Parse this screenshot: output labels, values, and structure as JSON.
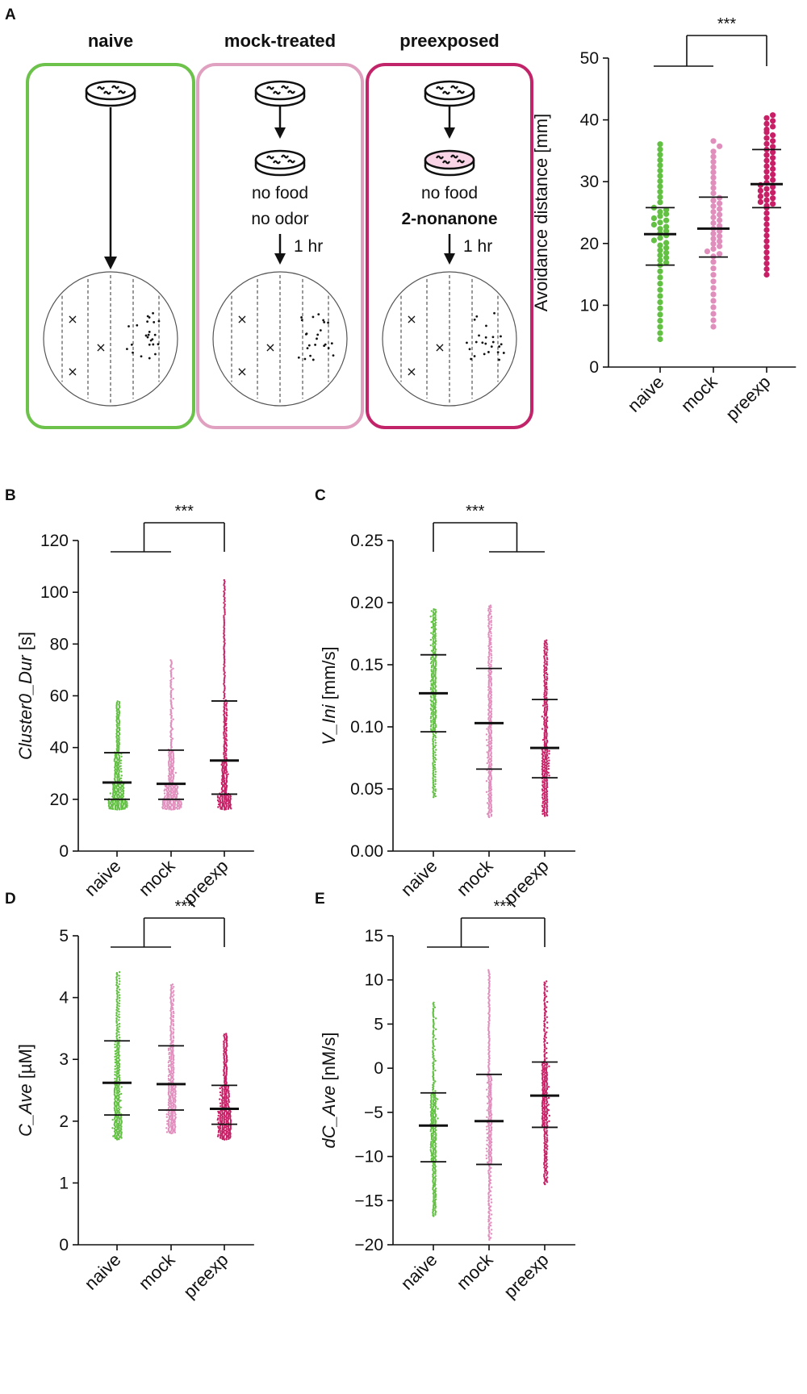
{
  "panel_labels": [
    "A",
    "B",
    "C",
    "D",
    "E"
  ],
  "schematic": {
    "columns": [
      {
        "key": "naive",
        "title": "naive",
        "border_color": "#6cc24a",
        "steps": [],
        "arrow_label": "",
        "dish_tint": "#ffffff"
      },
      {
        "key": "mock",
        "title": "mock-treated",
        "border_color": "#e0a0bf",
        "steps": [
          "no food",
          "no odor"
        ],
        "arrow_label": "1 hr",
        "dish_tint": "#ffffff"
      },
      {
        "key": "preexp",
        "title": "preexposed",
        "border_color": "#c2246a",
        "steps": [
          "no food",
          "2-nonanone"
        ],
        "arrow_label": "1 hr",
        "dish_tint": "#f9d4e6"
      }
    ]
  },
  "colors": {
    "naive": "#62c043",
    "mock": "#e08fbd",
    "preexp": "#c81f66",
    "axis": "#111111"
  },
  "chart_data": [
    {
      "id": "A",
      "type": "scatter",
      "title": "",
      "categories": [
        "naive",
        "mock",
        "preexp"
      ],
      "ylabel": "Avoidance distance [mm]",
      "ylabel_prefix": "",
      "ylabel_suffix": "",
      "ylim": [
        0,
        50
      ],
      "yticks": [
        0,
        10,
        20,
        30,
        40,
        50
      ],
      "ytick_labels": [
        "0",
        "10",
        "20",
        "30",
        "40",
        "50"
      ],
      "series": [
        {
          "name": "naive",
          "n": 50,
          "min": 4,
          "max": 36.5,
          "q1": 16.5,
          "median": 21.5,
          "q3": 25.8
        },
        {
          "name": "mock",
          "n": 45,
          "min": 6,
          "max": 37,
          "q1": 17.8,
          "median": 22.4,
          "q3": 27.5
        },
        {
          "name": "preexp",
          "n": 50,
          "min": 14.5,
          "max": 41,
          "q1": 25.8,
          "median": 29.6,
          "q3": 35.2
        }
      ],
      "significance": {
        "label": "***",
        "left": [
          "naive",
          "mock"
        ],
        "right": [
          "preexp"
        ]
      }
    },
    {
      "id": "B",
      "type": "scatter",
      "title": "",
      "categories": [
        "naive",
        "mock",
        "preexp"
      ],
      "ylabel": "",
      "ylabel_prefix": "Cluster0_Dur",
      "ylabel_suffix": " [s]",
      "ylim": [
        0,
        120
      ],
      "yticks": [
        0,
        20,
        40,
        60,
        80,
        100,
        120
      ],
      "ytick_labels": [
        "0",
        "20",
        "40",
        "60",
        "80",
        "100",
        "120"
      ],
      "series": [
        {
          "name": "naive",
          "n": 300,
          "min": 16,
          "max": 58,
          "q1": 20,
          "median": 26.5,
          "q3": 38
        },
        {
          "name": "mock",
          "n": 300,
          "min": 16,
          "max": 74,
          "q1": 20,
          "median": 26,
          "q3": 39
        },
        {
          "name": "preexp",
          "n": 300,
          "min": 16,
          "max": 105,
          "q1": 22,
          "median": 35,
          "q3": 58
        }
      ],
      "significance": {
        "label": "***",
        "left": [
          "naive",
          "mock"
        ],
        "right": [
          "preexp"
        ]
      }
    },
    {
      "id": "C",
      "type": "scatter",
      "title": "",
      "categories": [
        "naive",
        "mock",
        "preexp"
      ],
      "ylabel": "",
      "ylabel_prefix": "V_Ini",
      "ylabel_suffix": " [mm/s]",
      "ylim": [
        0,
        0.25
      ],
      "yticks": [
        0,
        0.05,
        0.1,
        0.15,
        0.2,
        0.25
      ],
      "ytick_labels": [
        "0.00",
        "0.05",
        "0.10",
        "0.15",
        "0.20",
        "0.25"
      ],
      "series": [
        {
          "name": "naive",
          "n": 300,
          "min": 0.043,
          "max": 0.195,
          "q1": 0.096,
          "median": 0.127,
          "q3": 0.158
        },
        {
          "name": "mock",
          "n": 300,
          "min": 0.027,
          "max": 0.198,
          "q1": 0.066,
          "median": 0.103,
          "q3": 0.147
        },
        {
          "name": "preexp",
          "n": 300,
          "min": 0.028,
          "max": 0.17,
          "q1": 0.059,
          "median": 0.083,
          "q3": 0.122
        }
      ],
      "significance": {
        "label": "***",
        "left": [
          "naive"
        ],
        "right": [
          "mock",
          "preexp"
        ]
      }
    },
    {
      "id": "D",
      "type": "scatter",
      "title": "",
      "categories": [
        "naive",
        "mock",
        "preexp"
      ],
      "ylabel": "",
      "ylabel_prefix": "C_Ave",
      "ylabel_suffix": " [µM]",
      "ylim": [
        0,
        5
      ],
      "yticks": [
        0,
        1,
        2,
        3,
        4,
        5
      ],
      "ytick_labels": [
        "0",
        "1",
        "2",
        "3",
        "4",
        "5"
      ],
      "series": [
        {
          "name": "naive",
          "n": 300,
          "min": 1.7,
          "max": 4.42,
          "q1": 2.1,
          "median": 2.62,
          "q3": 3.3
        },
        {
          "name": "mock",
          "n": 300,
          "min": 1.8,
          "max": 4.22,
          "q1": 2.18,
          "median": 2.6,
          "q3": 3.22
        },
        {
          "name": "preexp",
          "n": 300,
          "min": 1.7,
          "max": 3.42,
          "q1": 1.95,
          "median": 2.2,
          "q3": 2.58
        }
      ],
      "significance": {
        "label": "***",
        "left": [
          "naive",
          "mock"
        ],
        "right": [
          "preexp"
        ]
      }
    },
    {
      "id": "E",
      "type": "scatter",
      "title": "",
      "categories": [
        "naive",
        "mock",
        "preexp"
      ],
      "ylabel": "",
      "ylabel_prefix": "dC_Ave",
      "ylabel_suffix": " [nM/s]",
      "ylim": [
        -20,
        15
      ],
      "yticks": [
        -20,
        -15,
        -10,
        -5,
        0,
        5,
        10,
        15
      ],
      "ytick_labels": [
        "−20",
        "−15",
        "−10",
        "−5",
        "0",
        "5",
        "10",
        "15"
      ],
      "series": [
        {
          "name": "naive",
          "n": 300,
          "min": -16.8,
          "max": 7.5,
          "q1": -10.6,
          "median": -6.5,
          "q3": -2.8
        },
        {
          "name": "mock",
          "n": 300,
          "min": -19.5,
          "max": 11.2,
          "q1": -10.9,
          "median": -6,
          "q3": -0.7
        },
        {
          "name": "preexp",
          "n": 300,
          "min": -13.2,
          "max": 9.9,
          "q1": -6.7,
          "median": -3.1,
          "q3": 0.7
        }
      ],
      "significance": {
        "label": "***",
        "left": [
          "naive",
          "mock"
        ],
        "right": [
          "preexp"
        ]
      }
    }
  ]
}
